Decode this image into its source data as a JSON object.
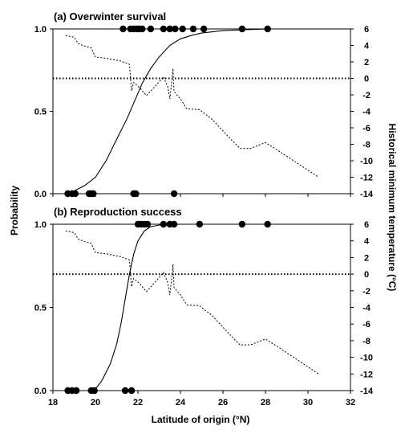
{
  "chart_data": [
    {
      "type": "line",
      "title": "(a) Overwinter survival",
      "ylabel": "Probability",
      "y2label": "Historical minimum temperature (°C)",
      "xlim": [
        18,
        32
      ],
      "ylim": [
        0,
        1
      ],
      "y2lim": [
        -14,
        6
      ],
      "x_ticks": [
        "18",
        "20",
        "22",
        "24",
        "26",
        "28",
        "30",
        "32"
      ],
      "y_ticks": [
        "0.0",
        "0.5",
        "1.0"
      ],
      "y2_ticks": [
        "-14",
        "-12",
        "-10",
        "-8",
        "-6",
        "-4",
        "-2",
        "0",
        "2",
        "4",
        "6"
      ],
      "show_x_tick_labels": false,
      "series": [
        {
          "role": "probability-curve",
          "axis": "left",
          "style": "solid",
          "points": [
            [
              18.9,
              0.01
            ],
            [
              19.5,
              0.05
            ],
            [
              20.0,
              0.1
            ],
            [
              20.5,
              0.2
            ],
            [
              21.0,
              0.33
            ],
            [
              21.5,
              0.46
            ],
            [
              21.8,
              0.55
            ],
            [
              22.2,
              0.67
            ],
            [
              22.6,
              0.76
            ],
            [
              23.0,
              0.83
            ],
            [
              23.5,
              0.9
            ],
            [
              24.0,
              0.94
            ],
            [
              24.5,
              0.96
            ],
            [
              25.0,
              0.975
            ],
            [
              26.0,
              0.99
            ],
            [
              27.0,
              0.995
            ],
            [
              28.2,
              1.0
            ]
          ]
        },
        {
          "role": "temperature-curve",
          "axis": "right",
          "style": "dotted",
          "points": [
            [
              18.6,
              5.2
            ],
            [
              19.0,
              5.0
            ],
            [
              19.2,
              4.2
            ],
            [
              19.5,
              3.9
            ],
            [
              19.8,
              3.7
            ],
            [
              20.0,
              2.6
            ],
            [
              20.6,
              2.4
            ],
            [
              21.2,
              2.1
            ],
            [
              21.6,
              1.7
            ],
            [
              21.7,
              -1.5
            ],
            [
              21.8,
              -0.5
            ],
            [
              22.1,
              -1.2
            ],
            [
              22.4,
              -2.1
            ],
            [
              22.8,
              -1.0
            ],
            [
              23.2,
              0.2
            ],
            [
              23.4,
              -1.0
            ],
            [
              23.5,
              -2.5
            ],
            [
              23.6,
              -0.2
            ],
            [
              23.65,
              1.2
            ],
            [
              23.7,
              -1.6
            ],
            [
              24.0,
              -2.5
            ],
            [
              24.3,
              -3.7
            ],
            [
              24.9,
              -3.8
            ],
            [
              25.5,
              -5.0
            ],
            [
              26.3,
              -7.2
            ],
            [
              26.8,
              -8.5
            ],
            [
              27.3,
              -8.5
            ],
            [
              28.0,
              -7.8
            ],
            [
              28.5,
              -8.6
            ],
            [
              29.5,
              -10.3
            ],
            [
              30.5,
              -12.0
            ]
          ]
        }
      ],
      "observations": {
        "y1": [
          21.3,
          21.65,
          21.8,
          21.95,
          22.05,
          22.2,
          22.6,
          23.2,
          23.5,
          23.75,
          24.1,
          24.6,
          25.1,
          26.9,
          28.1
        ],
        "y0": [
          18.7,
          18.9,
          19.05,
          19.7,
          19.8,
          19.9,
          21.8,
          21.9,
          23.7
        ]
      },
      "reference_line": {
        "axis": "right",
        "value": 0
      }
    },
    {
      "type": "line",
      "title": "(b) Reproduction success",
      "ylabel": "Probability",
      "y2label": "Historical minimum temperature (°C)",
      "xlabel": "Latitude of origin (°N)",
      "xlim": [
        18,
        32
      ],
      "ylim": [
        0,
        1
      ],
      "y2lim": [
        -14,
        6
      ],
      "x_ticks": [
        "18",
        "20",
        "22",
        "24",
        "26",
        "28",
        "30",
        "32"
      ],
      "y_ticks": [
        "0.0",
        "0.5",
        "1.0"
      ],
      "y2_ticks": [
        "-14",
        "-12",
        "-10",
        "-8",
        "-6",
        "-4",
        "-2",
        "0",
        "2",
        "4",
        "6"
      ],
      "show_x_tick_labels": true,
      "series": [
        {
          "role": "probability-curve",
          "axis": "left",
          "style": "solid",
          "points": [
            [
              18.9,
              0.0
            ],
            [
              19.95,
              0.0
            ],
            [
              20.3,
              0.06
            ],
            [
              20.7,
              0.16
            ],
            [
              21.0,
              0.28
            ],
            [
              21.2,
              0.4
            ],
            [
              21.4,
              0.55
            ],
            [
              21.6,
              0.7
            ],
            [
              21.8,
              0.82
            ],
            [
              22.0,
              0.9
            ],
            [
              22.3,
              0.96
            ],
            [
              22.6,
              0.985
            ],
            [
              23.0,
              0.995
            ],
            [
              24.0,
              1.0
            ],
            [
              28.2,
              1.0
            ]
          ]
        },
        {
          "role": "temperature-curve",
          "axis": "right",
          "style": "dotted",
          "points": [
            [
              18.6,
              5.2
            ],
            [
              19.0,
              5.0
            ],
            [
              19.2,
              4.2
            ],
            [
              19.5,
              3.9
            ],
            [
              19.8,
              3.7
            ],
            [
              20.0,
              2.6
            ],
            [
              20.6,
              2.4
            ],
            [
              21.2,
              2.1
            ],
            [
              21.6,
              1.7
            ],
            [
              21.7,
              -1.5
            ],
            [
              21.8,
              -0.5
            ],
            [
              22.1,
              -1.2
            ],
            [
              22.4,
              -2.1
            ],
            [
              22.8,
              -1.0
            ],
            [
              23.2,
              0.2
            ],
            [
              23.4,
              -1.0
            ],
            [
              23.5,
              -2.5
            ],
            [
              23.6,
              -0.2
            ],
            [
              23.65,
              1.2
            ],
            [
              23.7,
              -1.6
            ],
            [
              24.0,
              -2.5
            ],
            [
              24.3,
              -3.7
            ],
            [
              24.9,
              -3.8
            ],
            [
              25.5,
              -5.0
            ],
            [
              26.3,
              -7.2
            ],
            [
              26.8,
              -8.5
            ],
            [
              27.3,
              -8.5
            ],
            [
              28.0,
              -7.8
            ],
            [
              28.5,
              -8.6
            ],
            [
              29.5,
              -10.3
            ],
            [
              30.5,
              -12.0
            ]
          ]
        }
      ],
      "observations": {
        "y1": [
          22.0,
          22.15,
          22.3,
          22.45,
          23.2,
          23.5,
          23.7,
          24.9,
          26.9,
          28.1
        ],
        "y0": [
          18.7,
          18.9,
          19.1,
          19.8,
          19.95,
          21.4,
          21.7
        ]
      },
      "reference_line": {
        "axis": "right",
        "value": 0
      }
    }
  ],
  "colors": {
    "line": "#000000",
    "axis": "#000000",
    "background": "#ffffff"
  }
}
